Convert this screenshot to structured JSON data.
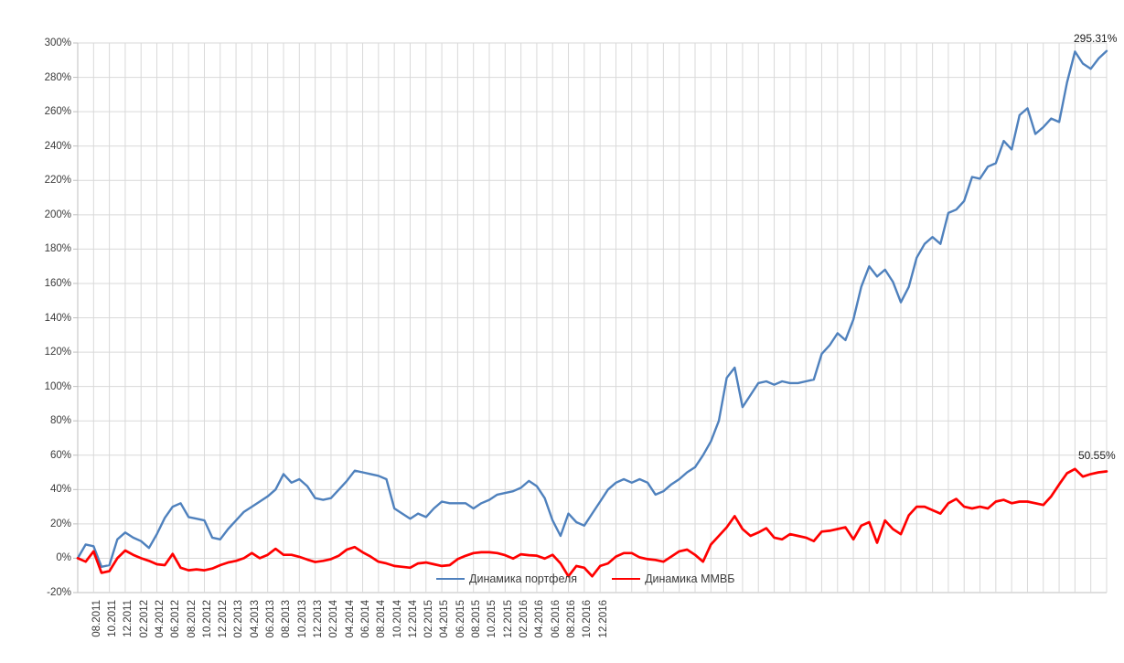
{
  "chart_data": {
    "type": "line",
    "title": "",
    "xlabel": "",
    "ylabel": "",
    "ylim": [
      -20,
      300
    ],
    "y_tick_labels": [
      "300%",
      "280%",
      "260%",
      "240%",
      "220%",
      "200%",
      "180%",
      "160%",
      "140%",
      "120%",
      "100%",
      "80%",
      "60%",
      "40%",
      "20%",
      "0%",
      "-20%"
    ],
    "x_tick_labels": [
      "08.2011",
      "10.2011",
      "12.2011",
      "02.2012",
      "04.2012",
      "06.2012",
      "08.2012",
      "10.2012",
      "12.2012",
      "02.2013",
      "04.2013",
      "06.2013",
      "08.2013",
      "10.2013",
      "12.2013",
      "02.2014",
      "04.2014",
      "06.2014",
      "08.2014",
      "10.2014",
      "12.2014",
      "02.2015",
      "04.2015",
      "06.2015",
      "08.2015",
      "10.2015",
      "12.2015",
      "02.2016",
      "04.2016",
      "06.2016",
      "08.2016",
      "10.2016",
      "12.2016"
    ],
    "months_total": 65,
    "points_per_month": 2,
    "grid": "horizontal every 20%, vertical every month",
    "legend_position": "inside-bottom-center",
    "gridline_color": "#d9d9d9",
    "axis_line_color": "#bfbfbf",
    "series": [
      {
        "name": "Динамика портфеля",
        "color": "#4F81BD",
        "stroke_width": 2.4,
        "end_label": "295.31%",
        "values": [
          0,
          8,
          7,
          -5,
          -4,
          11,
          15,
          12,
          10,
          6,
          14,
          23.5,
          30,
          32,
          24,
          23,
          22,
          12,
          11,
          17,
          22,
          27,
          30,
          33,
          36,
          40,
          49,
          44,
          46,
          42,
          35,
          34,
          35,
          40,
          45,
          51,
          50,
          49,
          48,
          46,
          29,
          26,
          23,
          26,
          24,
          29,
          33,
          32,
          32,
          32,
          29,
          32,
          34,
          37,
          38,
          39,
          41,
          45,
          42,
          35,
          22,
          13,
          26,
          21,
          19,
          26,
          33,
          40,
          44,
          46,
          44,
          46,
          44,
          37,
          39,
          43,
          46,
          50,
          53,
          60,
          68,
          80,
          105,
          111,
          88,
          95,
          102,
          103,
          101,
          103,
          102,
          102,
          103,
          104,
          119,
          124,
          131,
          127,
          139,
          158,
          170,
          164,
          168,
          161,
          149,
          158,
          175,
          183,
          187,
          183,
          201,
          203,
          208,
          222,
          221,
          228,
          230,
          243,
          238,
          258,
          262,
          247,
          251,
          256,
          254,
          277,
          295,
          288,
          285,
          291,
          295.31
        ]
      },
      {
        "name": "Динамика ММВБ",
        "color": "#FF0000",
        "stroke_width": 2.7,
        "end_label": "50.55%",
        "values": [
          0,
          -2,
          4,
          -8.5,
          -7.5,
          0,
          4.5,
          2,
          0,
          -1.5,
          -3.5,
          -4,
          2.5,
          -5.5,
          -7,
          -6.5,
          -7,
          -6,
          -4,
          -2.5,
          -1.5,
          0,
          3,
          0,
          2,
          5.5,
          2,
          2,
          0.8,
          -0.8,
          -2.2,
          -1.5,
          -0.5,
          1.5,
          5,
          6.5,
          3.5,
          1,
          -2,
          -3,
          -4.5,
          -5,
          -5.5,
          -3,
          -2.5,
          -3.5,
          -4.5,
          -4,
          -0.5,
          1.4,
          3,
          3.5,
          3.5,
          3,
          1.8,
          -0.2,
          2.3,
          1.8,
          1.5,
          -0.2,
          2,
          -3,
          -10.5,
          -4.5,
          -5.5,
          -10.5,
          -4.5,
          -3,
          1,
          3,
          3,
          0.5,
          -0.5,
          -1,
          -2,
          1,
          4,
          5,
          2,
          -2,
          8,
          13,
          18,
          24.5,
          17,
          13,
          15,
          17.5,
          12,
          11,
          14,
          13,
          12,
          10,
          15.5,
          16,
          17,
          18,
          11,
          19,
          21,
          9,
          22,
          17,
          14,
          25,
          30,
          30,
          28,
          26,
          32,
          34.5,
          30,
          29,
          30,
          29,
          33,
          34,
          32,
          33,
          33,
          32,
          31,
          36,
          43,
          49.5,
          52,
          47.5,
          49,
          50,
          50.55
        ]
      }
    ]
  },
  "legend": {
    "portfolio_label": "Динамика портфеля",
    "micex_label": "Динамика ММВБ"
  },
  "annotations": {
    "portfolio_end": "295.31%",
    "micex_end": "50.55%"
  }
}
